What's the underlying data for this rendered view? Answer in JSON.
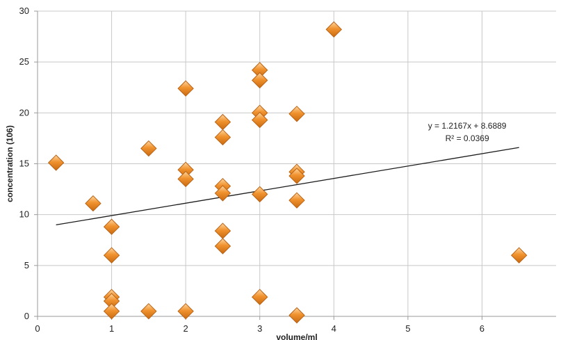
{
  "chart_data": {
    "type": "scatter",
    "xlabel": "volume/ml",
    "ylabel": "concentration (106)",
    "xlim": [
      0,
      7
    ],
    "ylim": [
      0,
      30
    ],
    "x_ticks": [
      "0",
      "1",
      "2",
      "3",
      "4",
      "5",
      "6"
    ],
    "y_ticks": [
      "0",
      "5",
      "10",
      "15",
      "20",
      "25",
      "30"
    ],
    "grid": true,
    "marker": "diamond",
    "marker_color": "#f0922e",
    "points": [
      {
        "x": 0.25,
        "y": 15.1
      },
      {
        "x": 0.75,
        "y": 11.1
      },
      {
        "x": 1.0,
        "y": 8.8
      },
      {
        "x": 1.0,
        "y": 6.0
      },
      {
        "x": 1.0,
        "y": 1.9
      },
      {
        "x": 1.0,
        "y": 1.5
      },
      {
        "x": 1.0,
        "y": 0.5
      },
      {
        "x": 1.5,
        "y": 16.5
      },
      {
        "x": 1.5,
        "y": 0.5
      },
      {
        "x": 2.0,
        "y": 22.4
      },
      {
        "x": 2.0,
        "y": 14.4
      },
      {
        "x": 2.0,
        "y": 13.5
      },
      {
        "x": 2.0,
        "y": 0.5
      },
      {
        "x": 2.5,
        "y": 19.1
      },
      {
        "x": 2.5,
        "y": 17.6
      },
      {
        "x": 2.5,
        "y": 12.8
      },
      {
        "x": 2.5,
        "y": 12.1
      },
      {
        "x": 2.5,
        "y": 8.4
      },
      {
        "x": 2.5,
        "y": 6.9
      },
      {
        "x": 3.0,
        "y": 24.2
      },
      {
        "x": 3.0,
        "y": 23.2
      },
      {
        "x": 3.0,
        "y": 20.0
      },
      {
        "x": 3.0,
        "y": 19.3
      },
      {
        "x": 3.0,
        "y": 12.0
      },
      {
        "x": 3.0,
        "y": 1.9
      },
      {
        "x": 3.5,
        "y": 19.9
      },
      {
        "x": 3.5,
        "y": 14.2
      },
      {
        "x": 3.5,
        "y": 13.8
      },
      {
        "x": 3.5,
        "y": 11.4
      },
      {
        "x": 3.5,
        "y": 0.1
      },
      {
        "x": 4.0,
        "y": 28.2
      },
      {
        "x": 6.5,
        "y": 6.0
      }
    ],
    "trendline": {
      "type": "linear",
      "slope": 1.2167,
      "intercept": 8.6889,
      "x_range": [
        0.25,
        6.5
      ],
      "equation": "y = 1.2167x + 8.6889",
      "r_squared": "R² = 0.0369"
    }
  }
}
